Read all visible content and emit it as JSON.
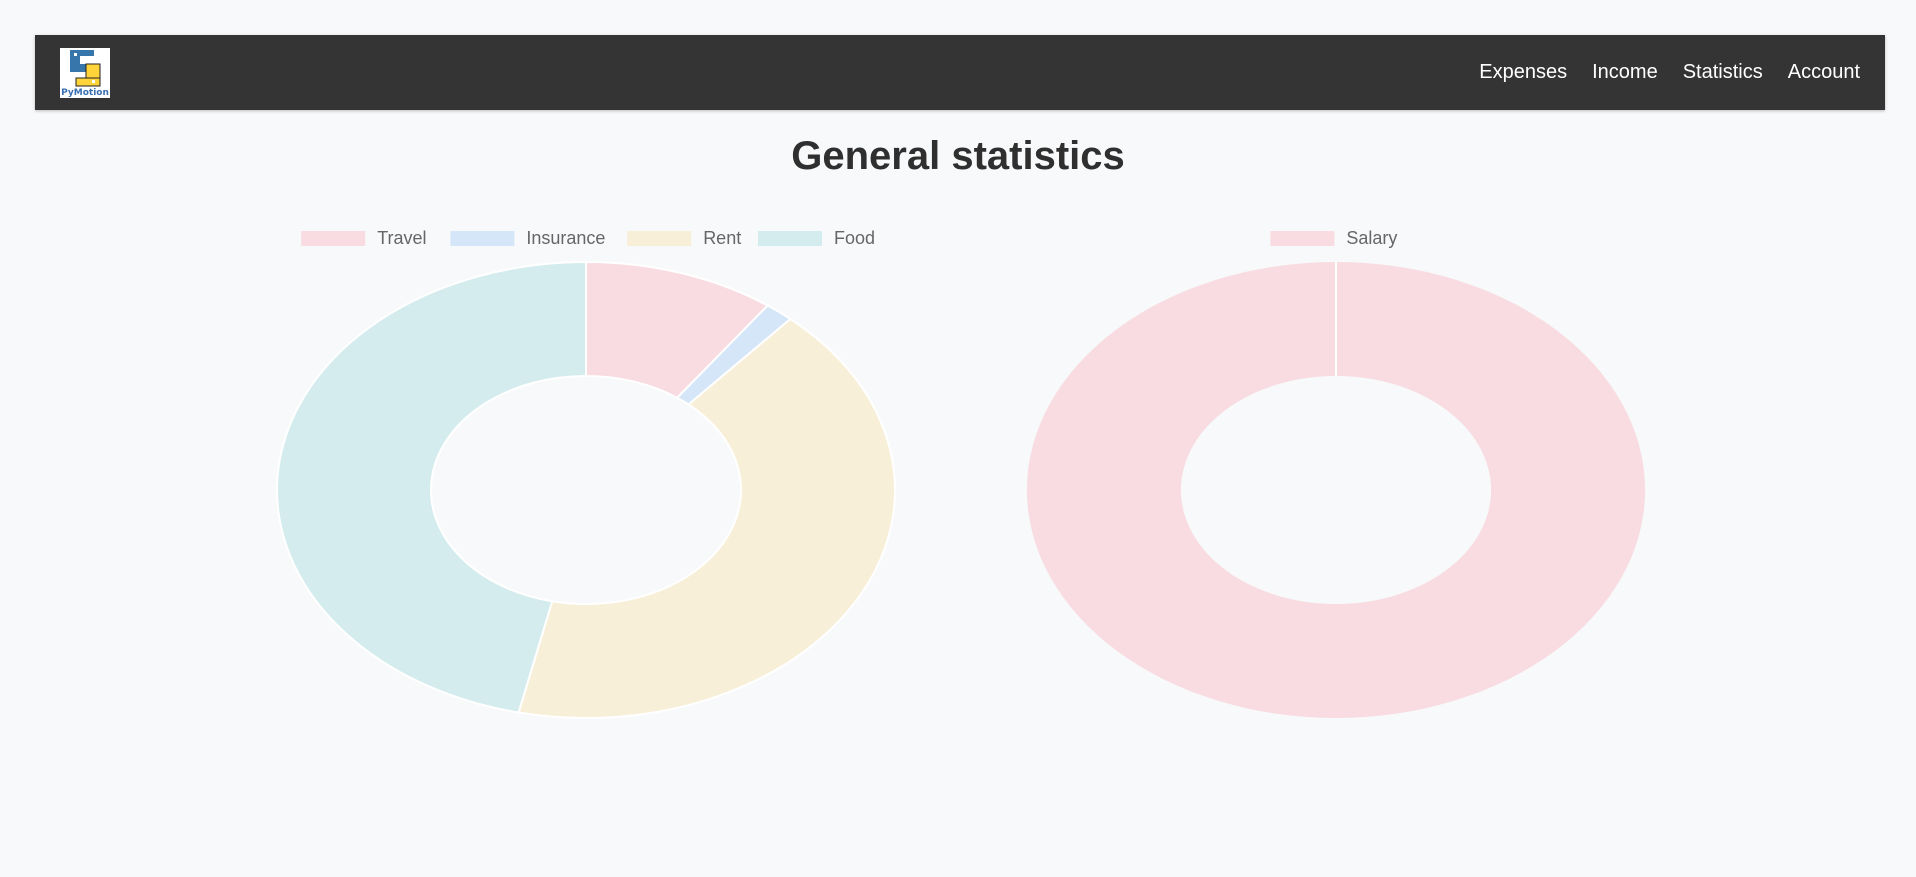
{
  "nav": {
    "logo_text": "PyMotion",
    "links": [
      "Expenses",
      "Income",
      "Statistics",
      "Account"
    ]
  },
  "page_title": "General statistics",
  "chart_data": [
    {
      "type": "pie",
      "variant": "doughnut",
      "categories": [
        "Travel",
        "Insurance",
        "Rent",
        "Food"
      ],
      "values": [
        10,
        1.5,
        42,
        46.5
      ],
      "colors": [
        "#f8dce1",
        "#d4e6f7",
        "#f8efd9",
        "#d5ecee"
      ],
      "legend": "top"
    },
    {
      "type": "pie",
      "variant": "doughnut",
      "categories": [
        "Salary"
      ],
      "values": [
        100
      ],
      "colors": [
        "#f8dce1"
      ],
      "legend": "top"
    }
  ]
}
